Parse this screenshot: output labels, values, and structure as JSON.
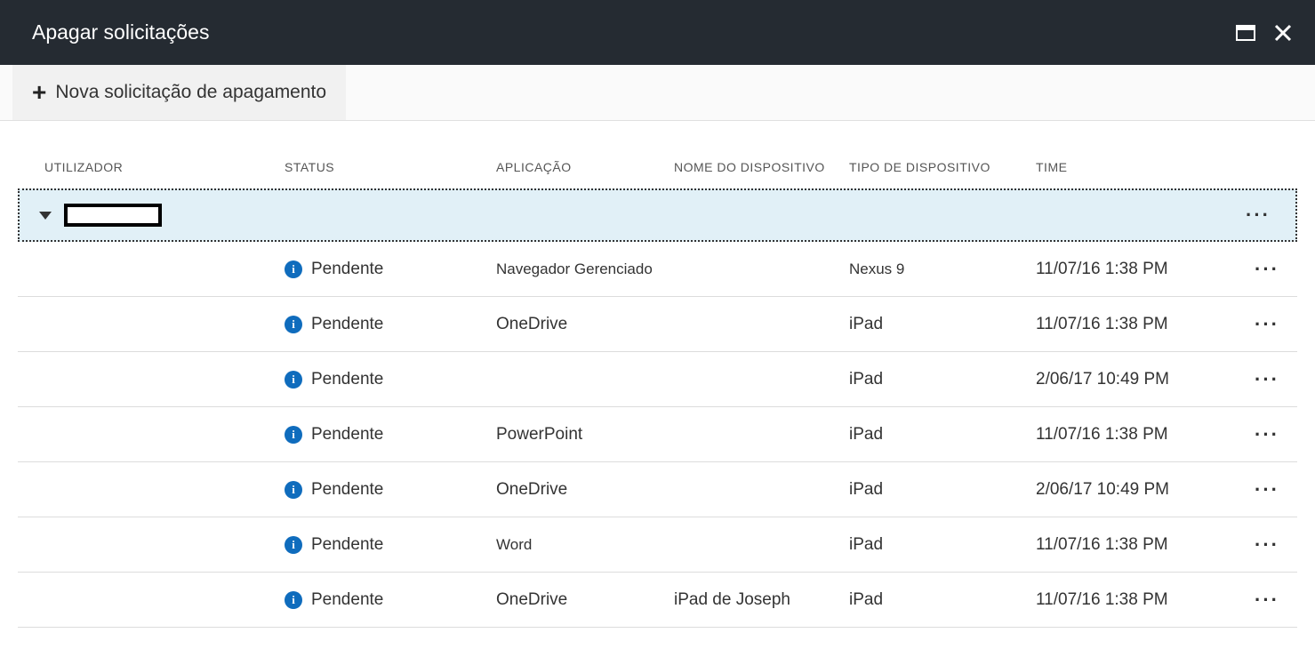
{
  "header": {
    "title": "Apagar solicitações"
  },
  "toolbar": {
    "new_request_label": "Nova solicitação de apagamento"
  },
  "columns": {
    "user": "UTILIZADOR",
    "status": "STATUS",
    "app": "APLICAÇÃO",
    "device_name": "NOME DO DISPOSITIVO",
    "device_type": "TIPO DE DISPOSITIVO",
    "time": "TIME"
  },
  "status_label": "Pendente",
  "rows": [
    {
      "app": "Navegador Gerenciado",
      "device_name": "",
      "device_type": "Nexus 9",
      "time": "11/07/16 1:38 PM",
      "small": true
    },
    {
      "app": "OneDrive",
      "device_name": "",
      "device_type": "iPad",
      "time": "11/07/16 1:38 PM",
      "small": false
    },
    {
      "app": "",
      "device_name": "",
      "device_type": "iPad",
      "time": "2/06/17 10:49 PM",
      "small": false
    },
    {
      "app": "PowerPoint",
      "device_name": "",
      "device_type": "iPad",
      "time": "11/07/16 1:38 PM",
      "small": false
    },
    {
      "app": "OneDrive",
      "device_name": "",
      "device_type": "iPad",
      "time": "2/06/17 10:49 PM",
      "small": false
    },
    {
      "app": "Word",
      "device_name": "",
      "device_type": "iPad",
      "time": "11/07/16 1:38 PM",
      "small": true
    },
    {
      "app": "OneDrive",
      "device_name": "iPad de Joseph",
      "device_type": "iPad",
      "time": "11/07/16 1:38 PM",
      "small": false
    }
  ],
  "colors": {
    "header_bg": "#252b32",
    "info_icon": "#0f6cbd",
    "group_bg": "#e1f0f7",
    "border": "#dcdcdc"
  }
}
